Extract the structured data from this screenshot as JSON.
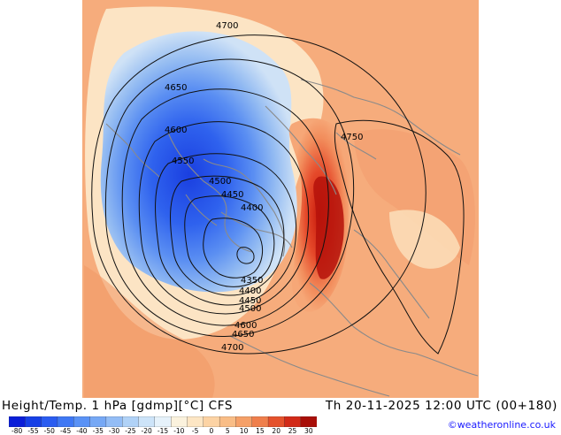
{
  "title": "Height/Temp. 1 hPa [gdmp][°C] CFS",
  "datetime": "Th 20-11-2025 12:00 UTC (00+180)",
  "credit": "©weatheronline.co.uk",
  "contour_labels": [
    "4700",
    "4650",
    "4600",
    "4550",
    "4500",
    "4450",
    "4400",
    "4750",
    "4350",
    "4400",
    "4450",
    "4500",
    "4600",
    "4650",
    "4700"
  ],
  "colorbar": {
    "labels": [
      "-80",
      "-55",
      "-50",
      "-45",
      "-40",
      "-35",
      "-30",
      "-25",
      "-20",
      "-15",
      "-10",
      "-5",
      "0",
      "5",
      "10",
      "15",
      "20",
      "25",
      "30"
    ],
    "colors": [
      "#0a1ed8",
      "#1640e6",
      "#2a5cf0",
      "#3f78f4",
      "#5a92f6",
      "#76a8f5",
      "#93bdf6",
      "#b0d2f7",
      "#cde4f9",
      "#e6f2fb",
      "#fbf2dd",
      "#fde6c4",
      "#fcd3a4",
      "#f9bd86",
      "#f5a068",
      "#ef7f4c",
      "#e5522c",
      "#d22a18",
      "#a80e08"
    ]
  }
}
